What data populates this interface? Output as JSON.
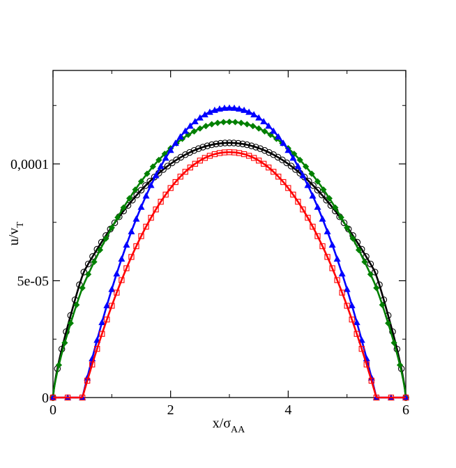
{
  "chart_data": {
    "type": "line",
    "xlabel": {
      "main": "x/σ",
      "sub": "AA"
    },
    "ylabel": {
      "main": "u/v",
      "sub": "T"
    },
    "xlim": [
      0,
      6
    ],
    "ylim": [
      0,
      0.00014
    ],
    "x_ticks": [
      {
        "value": 0,
        "label": "0"
      },
      {
        "value": 2,
        "label": "2"
      },
      {
        "value": 4,
        "label": "4"
      },
      {
        "value": 6,
        "label": "6"
      }
    ],
    "y_ticks": [
      {
        "value": 0,
        "label": "0"
      },
      {
        "value": 5e-05,
        "label": "5e-05"
      },
      {
        "value": 0.0001,
        "label": "0,0001"
      }
    ],
    "grid": false,
    "legend": "none",
    "series": [
      {
        "color": "#000000",
        "marker": "circle-open",
        "profile": {
          "x0": 0,
          "x1": 6,
          "peak": 0.000109,
          "shoulder": 5.5e-05,
          "shoulder_x": 0.55
        },
        "marker_count": 81
      },
      {
        "color": "#008000",
        "marker": "diamond-filled",
        "profile": {
          "x0": 0,
          "x1": 6,
          "peak": 0.000118,
          "shoulder": 5e-05,
          "shoulder_x": 0.55
        },
        "marker_count": 61
      },
      {
        "color": "#0000ff",
        "marker": "triangle-filled",
        "profile": {
          "x0": 0.5,
          "x1": 5.5,
          "peak": 0.000124
        },
        "flat_points": [
          0,
          0.25,
          0.5,
          5.5,
          5.75,
          6
        ],
        "marker_count": 61
      },
      {
        "color": "#ff0000",
        "marker": "square-open",
        "profile": {
          "x0": 0.5,
          "x1": 5.5,
          "peak": 0.000105
        },
        "flat_points": [
          0,
          0.25,
          0.5,
          5.5,
          5.75,
          6
        ],
        "marker_count": 61
      }
    ]
  }
}
